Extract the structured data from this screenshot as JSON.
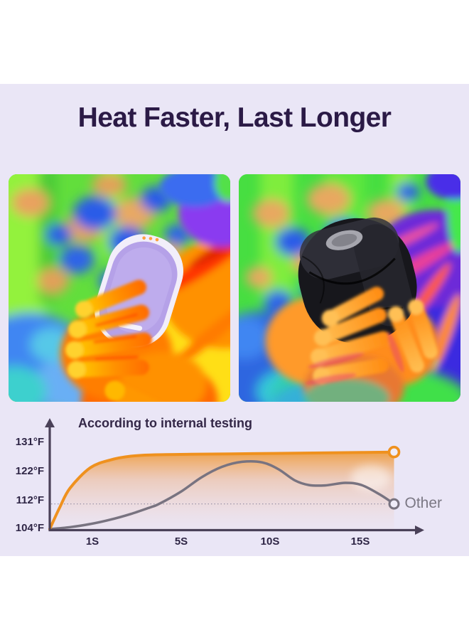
{
  "title": "Heat Faster, Last Longer",
  "colors": {
    "panel_background": "#EAE6F6",
    "title_text": "#2B1A46",
    "accent_orange": "#EF911E",
    "other_gray": "#787380",
    "axis": "#4A4158"
  },
  "images": {
    "left_semantic": "thermal-photo-hands-holding-purple-hand-warmer",
    "right_semantic": "thermal-photo-hands-holding-black-hand-warmer"
  },
  "chart": {
    "note": "According to internal testing",
    "note_mark": ".",
    "other_label": "Other",
    "y_tick_labels": [
      "131°F",
      "122°F",
      "112°F",
      "104°F"
    ],
    "x_tick_labels": [
      "1S",
      "5S",
      "10S",
      "15S"
    ]
  },
  "chart_data": {
    "type": "line",
    "title": "According to internal testing",
    "x_unit": "seconds",
    "xlim": [
      0,
      17
    ],
    "ylim": [
      104,
      131
    ],
    "y_ticks": [
      131,
      122,
      112,
      104
    ],
    "y_tick_labels": [
      "131°F",
      "122°F",
      "112°F",
      "104°F"
    ],
    "x_tick_labels": [
      "1S",
      "5S",
      "10S",
      "15S"
    ],
    "grid": "single dotted horizontal reference line at 112°F",
    "legend": "gray series labeled 'Other' at line end; orange series is the product (unlabeled)",
    "series": [
      {
        "name": "product",
        "color": "#EF911E",
        "marker": "open-circle-at-end",
        "fill": "orange gradient area under curve",
        "x": [
          0,
          0.5,
          1,
          2,
          3,
          4,
          5,
          7,
          10,
          13,
          15.5,
          17
        ],
        "values": [
          104,
          111,
          117,
          123.5,
          126,
          127.2,
          127.6,
          127.8,
          128,
          128.2,
          128.4,
          128.5
        ]
      },
      {
        "name": "Other",
        "color": "#787380",
        "marker": "open-circle-at-end",
        "x": [
          0,
          1,
          2,
          3,
          4,
          5,
          5.4,
          6.5,
          7.5,
          8.5,
          9.5,
          10.5,
          11.3,
          12.1,
          12.8,
          13.6,
          14.6,
          15.4,
          16.3,
          17
        ],
        "values": [
          104,
          104.6,
          105.6,
          107,
          108.8,
          111,
          112,
          116,
          120.5,
          123.8,
          125.4,
          125.2,
          123,
          119.5,
          118,
          117.9,
          118.7,
          118,
          115,
          112
        ]
      }
    ]
  }
}
